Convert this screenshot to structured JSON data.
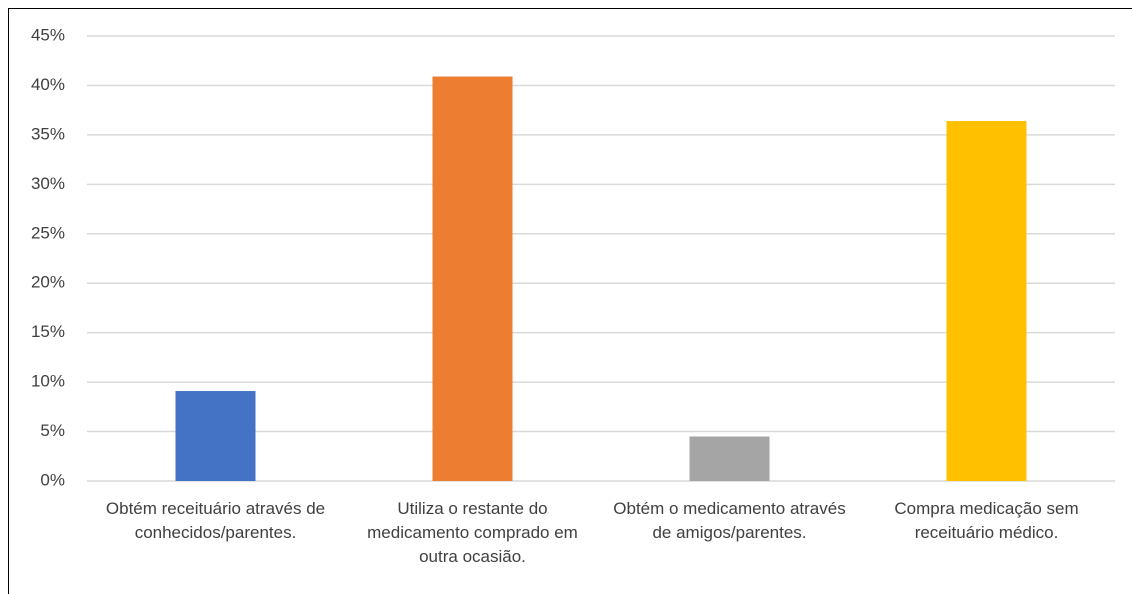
{
  "chart_data": {
    "type": "bar",
    "categories": [
      "Obtém receituário através de conhecidos/parentes.",
      "Utiliza o restante do medicamento comprado em outra ocasião.",
      "Obtém o medicamento através de amigos/parentes.",
      "Compra medicação sem receituário médico."
    ],
    "values": [
      9.1,
      40.9,
      4.5,
      36.4
    ],
    "colors": [
      "#4472c4",
      "#ed7d31",
      "#a5a5a5",
      "#ffc000"
    ],
    "ylim": [
      0,
      45
    ],
    "yticks": [
      {
        "value": 0,
        "label": "0%"
      },
      {
        "value": 5,
        "label": "5%"
      },
      {
        "value": 10,
        "label": "10%"
      },
      {
        "value": 15,
        "label": "15%"
      },
      {
        "value": 20,
        "label": "20%"
      },
      {
        "value": 25,
        "label": "25%"
      },
      {
        "value": 30,
        "label": "30%"
      },
      {
        "value": 35,
        "label": "35%"
      },
      {
        "value": 40,
        "label": "40%"
      },
      {
        "value": 45,
        "label": "45%"
      }
    ],
    "grid": true
  }
}
